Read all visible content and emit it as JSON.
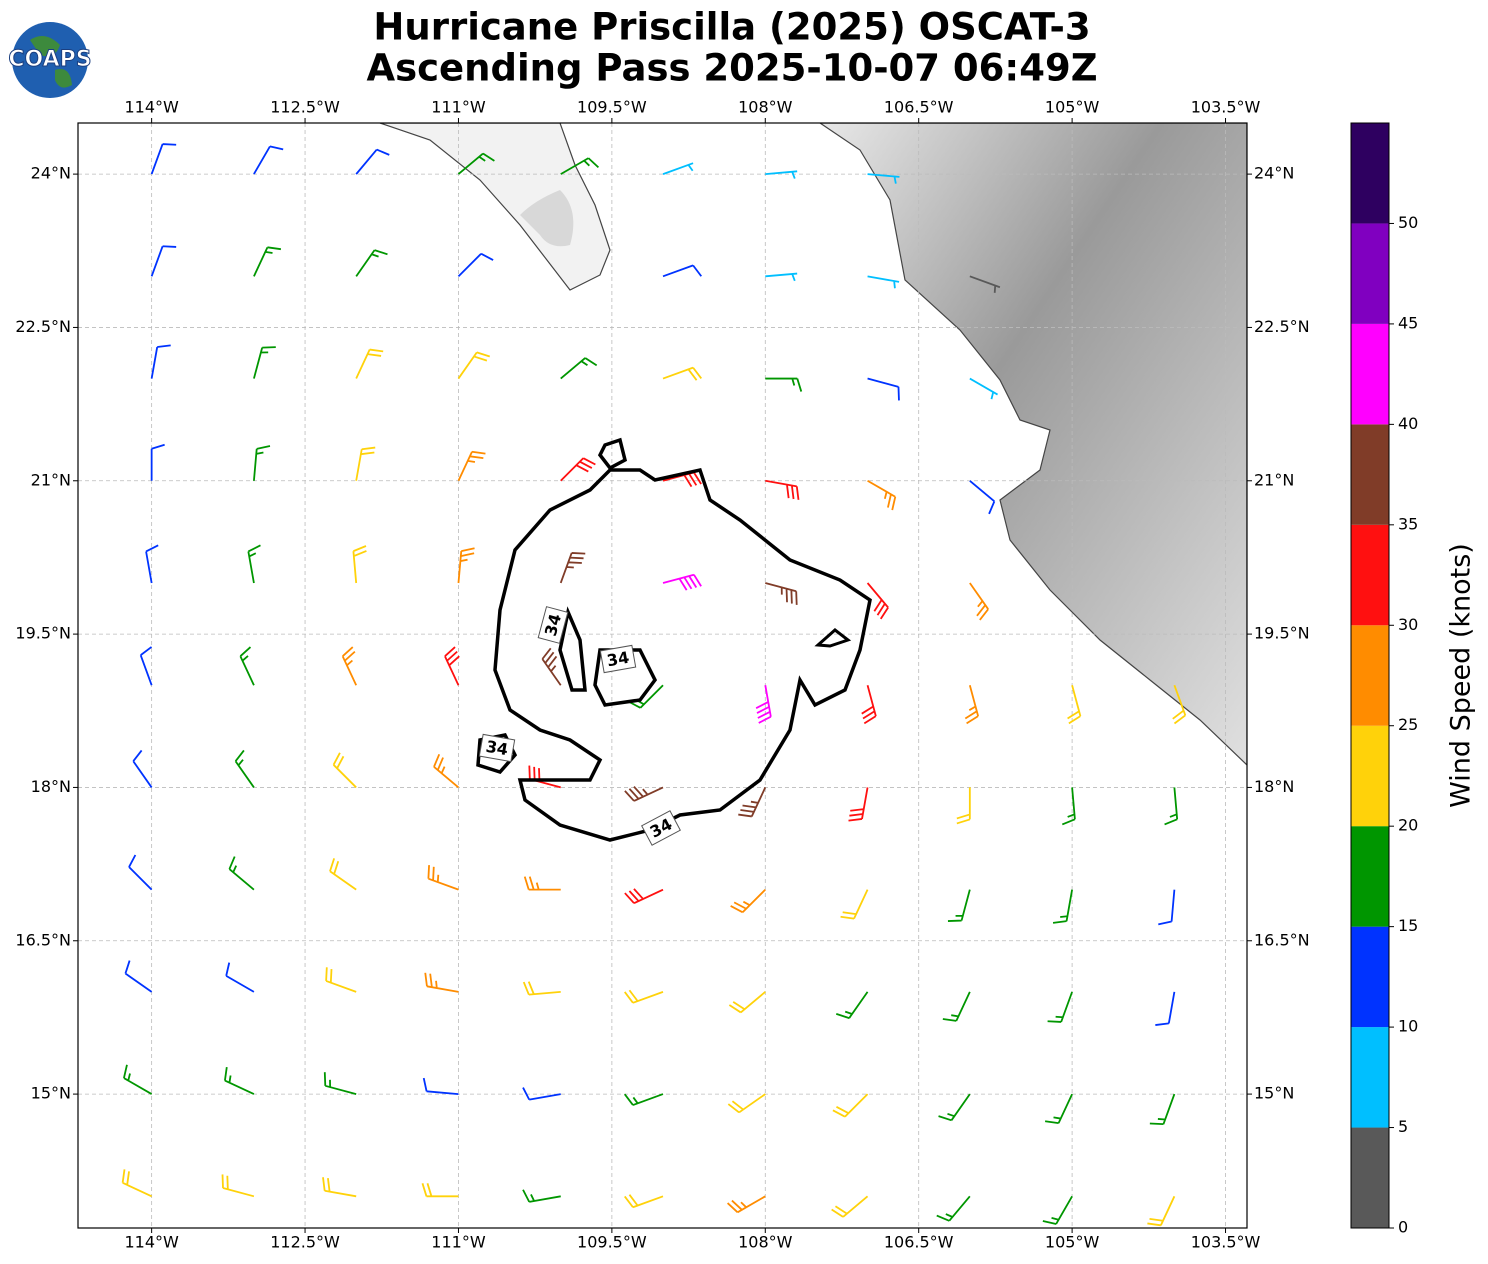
{
  "chart_data": {
    "type": "barbs",
    "logo": "COAPS",
    "title": [
      "Hurricane Priscilla (2025) OSCAT-3",
      "Ascending Pass 2025-10-07 06:49Z"
    ],
    "xlim": [
      -114.72,
      -103.29
    ],
    "ylim": [
      13.69,
      24.5
    ],
    "xticks": [
      {
        "value": -114,
        "label": "114°W"
      },
      {
        "value": -112.5,
        "label": "112.5°W"
      },
      {
        "value": -111,
        "label": "111°W"
      },
      {
        "value": -109.5,
        "label": "109.5°W"
      },
      {
        "value": -108,
        "label": "108°W"
      },
      {
        "value": -106.5,
        "label": "106.5°W"
      },
      {
        "value": -105,
        "label": "105°W"
      },
      {
        "value": -103.5,
        "label": "103.5°W"
      }
    ],
    "yticks": [
      {
        "value": 24,
        "label": "24°N"
      },
      {
        "value": 22.5,
        "label": "22.5°N"
      },
      {
        "value": 21,
        "label": "21°N"
      },
      {
        "value": 19.5,
        "label": "19.5°N"
      },
      {
        "value": 18,
        "label": "18°N"
      },
      {
        "value": 16.5,
        "label": "16.5°N"
      },
      {
        "value": 15,
        "label": "15°N"
      }
    ],
    "grid": true,
    "contour_level": 34,
    "lons": [
      -114,
      -113,
      -112,
      -111,
      -110,
      -109,
      -108,
      -107,
      -106,
      -105,
      -104
    ],
    "lats": [
      24,
      23,
      22,
      21,
      20,
      19,
      18,
      17,
      16,
      15,
      14
    ],
    "speed": [
      [
        12,
        12,
        12,
        17,
        17,
        7,
        7,
        7,
        null,
        null,
        null
      ],
      [
        12,
        17,
        17,
        12,
        null,
        12,
        7,
        7,
        4,
        null,
        null
      ],
      [
        12,
        17,
        22,
        22,
        17,
        22,
        17,
        12,
        7,
        null,
        null
      ],
      [
        12,
        17,
        22,
        27,
        32,
        32,
        32,
        27,
        12,
        null,
        null
      ],
      [
        12,
        17,
        22,
        27,
        37,
        42,
        37,
        32,
        27,
        null,
        null
      ],
      [
        12,
        17,
        27,
        32,
        37,
        17,
        42,
        32,
        27,
        22,
        22
      ],
      [
        12,
        17,
        22,
        27,
        32,
        37,
        37,
        32,
        22,
        17,
        17
      ],
      [
        12,
        17,
        22,
        27,
        27,
        32,
        27,
        22,
        17,
        17,
        12
      ],
      [
        12,
        12,
        22,
        27,
        22,
        22,
        22,
        17,
        17,
        17,
        12
      ],
      [
        17,
        17,
        17,
        12,
        12,
        17,
        22,
        22,
        17,
        17,
        17
      ],
      [
        22,
        22,
        22,
        22,
        17,
        22,
        27,
        22,
        17,
        17,
        22
      ]
    ],
    "direction": [
      [
        20,
        30,
        40,
        50,
        60,
        70,
        85,
        95,
        null,
        null,
        null
      ],
      [
        20,
        25,
        35,
        45,
        null,
        70,
        85,
        100,
        110,
        null,
        null
      ],
      [
        10,
        15,
        25,
        35,
        50,
        70,
        90,
        105,
        120,
        null,
        null
      ],
      [
        0,
        5,
        10,
        25,
        45,
        75,
        100,
        120,
        130,
        null,
        null
      ],
      [
        350,
        350,
        355,
        5,
        20,
        75,
        105,
        140,
        145,
        null,
        null
      ],
      [
        340,
        335,
        335,
        335,
        325,
        225,
        170,
        165,
        165,
        165,
        160
      ],
      [
        325,
        325,
        315,
        310,
        285,
        245,
        205,
        190,
        180,
        175,
        175
      ],
      [
        315,
        310,
        305,
        290,
        270,
        245,
        225,
        205,
        195,
        190,
        185
      ],
      [
        305,
        300,
        290,
        280,
        265,
        250,
        230,
        215,
        205,
        200,
        190
      ],
      [
        300,
        295,
        285,
        275,
        260,
        250,
        235,
        225,
        215,
        205,
        200
      ],
      [
        295,
        285,
        280,
        270,
        260,
        250,
        240,
        230,
        220,
        210,
        205
      ]
    ],
    "colorbar": {
      "bounds": [
        0,
        5,
        10,
        15,
        20,
        25,
        30,
        35,
        40,
        45,
        50,
        55
      ],
      "colors": [
        "#595959",
        "#00bfff",
        "#0033ff",
        "#009600",
        "#ffd20a",
        "#ff8c00",
        "#ff1010",
        "#803c28",
        "#ff00ff",
        "#8000c0",
        "#2e0060"
      ],
      "ticks": [
        0,
        5,
        10,
        15,
        20,
        25,
        30,
        35,
        40,
        45,
        50
      ],
      "label": "Wind Speed (knots)"
    }
  }
}
